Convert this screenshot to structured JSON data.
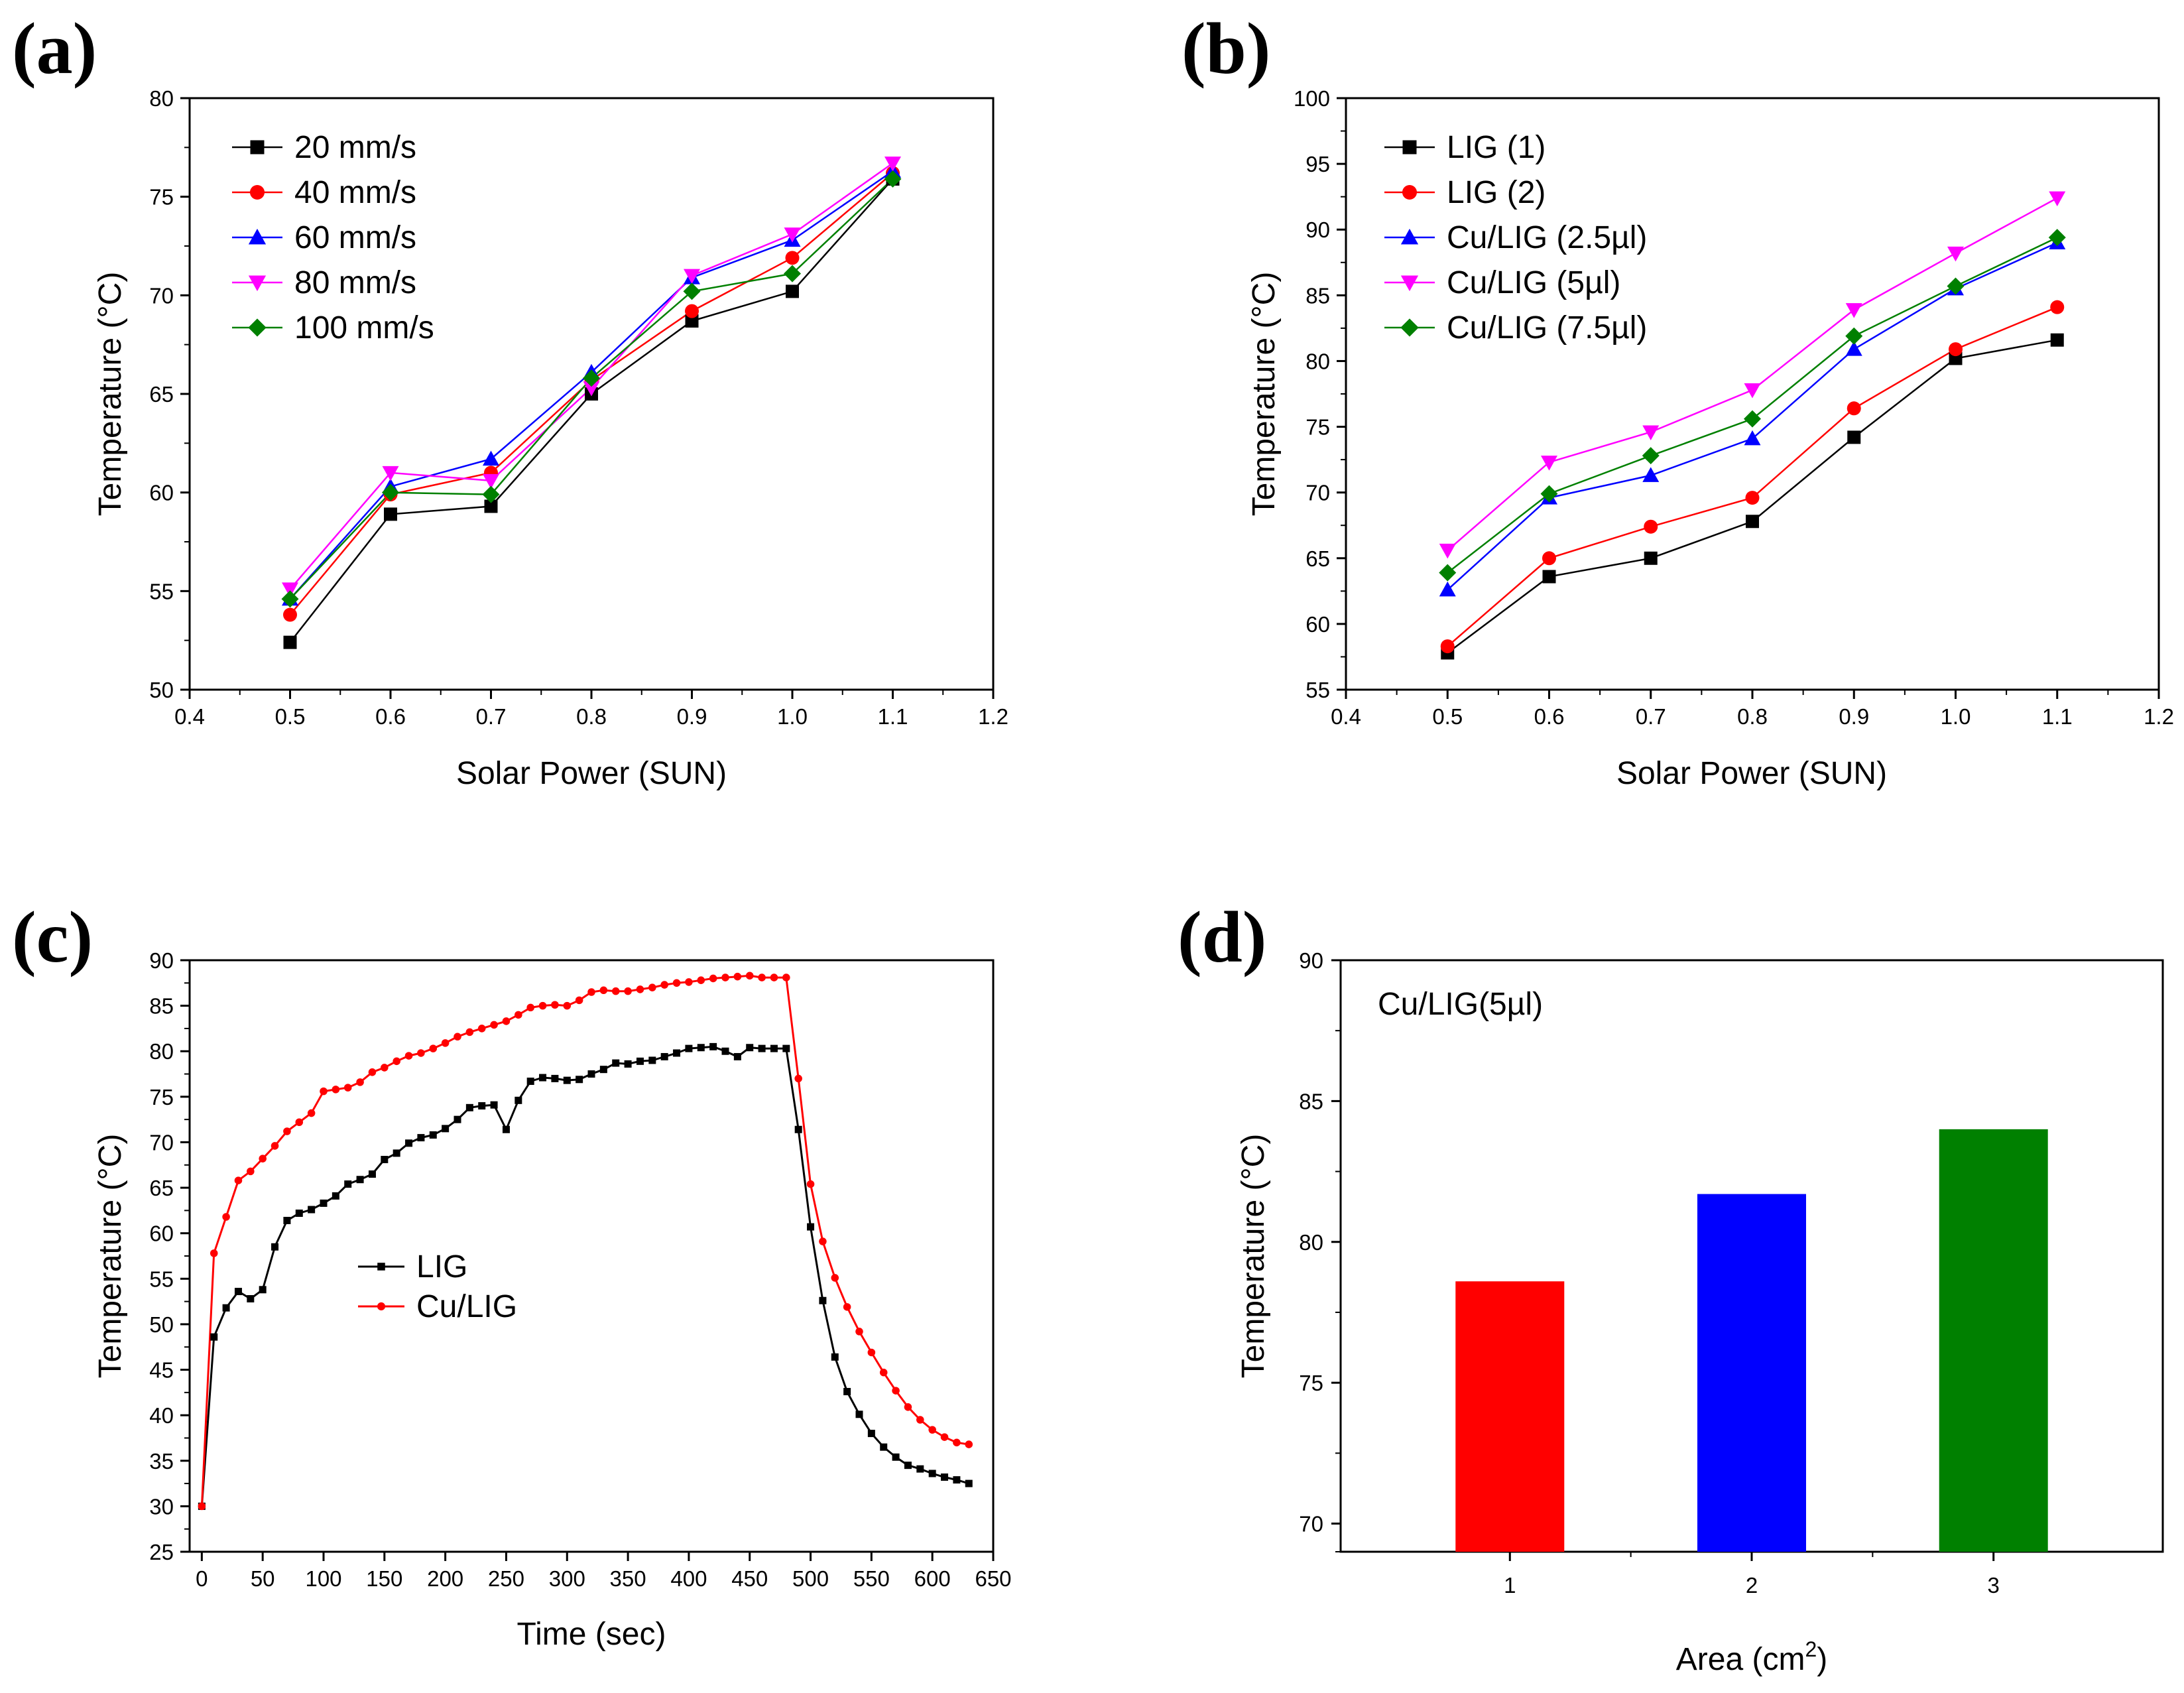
{
  "chart_data": [
    {
      "panel": "(a)",
      "type": "line",
      "xlabel": "Solar Power (SUN)",
      "ylabel": "Temperature (°C)",
      "xlim": [
        0.4,
        1.2
      ],
      "ylim": [
        50,
        80
      ],
      "xticks": [
        "0.4",
        "0.5",
        "0.6",
        "0.7",
        "0.8",
        "0.9",
        "1.0",
        "1.1",
        "1.2"
      ],
      "yticks": [
        "50",
        "55",
        "60",
        "65",
        "70",
        "75",
        "80"
      ],
      "legend_position": "top-left",
      "x": [
        0.5,
        0.6,
        0.7,
        0.8,
        0.9,
        1.0,
        1.1
      ],
      "series": [
        {
          "name": "20 mm/s",
          "color": "#000000",
          "marker": "square",
          "values": [
            52.4,
            58.9,
            59.3,
            65.0,
            68.7,
            70.2,
            75.9
          ]
        },
        {
          "name": "40 mm/s",
          "color": "#ff0000",
          "marker": "circle",
          "values": [
            53.8,
            59.9,
            61.0,
            65.7,
            69.2,
            71.9,
            76.2
          ]
        },
        {
          "name": "60 mm/s",
          "color": "#0000ff",
          "marker": "triangle-up",
          "values": [
            54.6,
            60.3,
            61.7,
            66.1,
            70.9,
            72.8,
            76.3
          ]
        },
        {
          "name": "80 mm/s",
          "color": "#ff00ff",
          "marker": "triangle-down",
          "values": [
            55.1,
            61.0,
            60.6,
            65.3,
            71.0,
            73.1,
            76.7
          ]
        },
        {
          "name": "100 mm/s",
          "color": "#008000",
          "marker": "diamond",
          "values": [
            54.6,
            60.0,
            59.9,
            65.8,
            70.2,
            71.1,
            75.9
          ]
        }
      ]
    },
    {
      "panel": "(b)",
      "type": "line",
      "xlabel": "Solar Power (SUN)",
      "ylabel": "Temperature (°C)",
      "xlim": [
        0.4,
        1.2
      ],
      "ylim": [
        55,
        100
      ],
      "xticks": [
        "0.4",
        "0.5",
        "0.6",
        "0.7",
        "0.8",
        "0.9",
        "1.0",
        "1.1",
        "1.2"
      ],
      "yticks": [
        "55",
        "60",
        "65",
        "70",
        "75",
        "80",
        "85",
        "90",
        "95",
        "100"
      ],
      "legend_position": "top-left",
      "x": [
        0.5,
        0.6,
        0.7,
        0.8,
        0.9,
        1.0,
        1.1
      ],
      "series": [
        {
          "name": "LIG (1)",
          "color": "#000000",
          "marker": "square",
          "values": [
            57.8,
            63.6,
            65.0,
            67.8,
            74.2,
            80.2,
            81.6
          ]
        },
        {
          "name": "LIG (2)",
          "color": "#ff0000",
          "marker": "circle",
          "values": [
            58.3,
            65.0,
            67.4,
            69.6,
            76.4,
            80.9,
            84.1
          ]
        },
        {
          "name": "Cu/LIG (2.5µl)",
          "color": "#0000ff",
          "marker": "triangle-up",
          "values": [
            62.6,
            69.6,
            71.3,
            74.1,
            80.9,
            85.5,
            89.0
          ]
        },
        {
          "name": "Cu/LIG (5µl)",
          "color": "#ff00ff",
          "marker": "triangle-down",
          "values": [
            65.6,
            72.3,
            74.6,
            77.8,
            83.9,
            88.2,
            92.4
          ]
        },
        {
          "name": "Cu/LIG (7.5µl)",
          "color": "#008000",
          "marker": "diamond",
          "values": [
            63.9,
            69.9,
            72.8,
            75.6,
            81.9,
            85.7,
            89.4
          ]
        }
      ]
    },
    {
      "panel": "(c)",
      "type": "line",
      "xlabel": "Time (sec)",
      "ylabel": "Temperature (°C)",
      "xlim": [
        -10,
        650
      ],
      "ylim": [
        25,
        90
      ],
      "xticks": [
        "0",
        "50",
        "100",
        "150",
        "200",
        "250",
        "300",
        "350",
        "400",
        "450",
        "500",
        "550",
        "600",
        "650"
      ],
      "yticks": [
        "25",
        "30",
        "35",
        "40",
        "45",
        "50",
        "55",
        "60",
        "65",
        "70",
        "75",
        "80",
        "85",
        "90"
      ],
      "legend_position": "center-left",
      "x": [
        0,
        10,
        20,
        30,
        40,
        50,
        60,
        70,
        80,
        90,
        100,
        110,
        120,
        130,
        140,
        150,
        160,
        170,
        180,
        190,
        200,
        210,
        220,
        230,
        240,
        250,
        260,
        270,
        280,
        290,
        300,
        310,
        320,
        330,
        340,
        350,
        360,
        370,
        380,
        390,
        400,
        410,
        420,
        430,
        440,
        450,
        460,
        470,
        480,
        490,
        500,
        510,
        520,
        530,
        540,
        550,
        560,
        570,
        580,
        590,
        600,
        610,
        620,
        630
      ],
      "series": [
        {
          "name": "LIG",
          "color": "#000000",
          "marker": "square",
          "values": [
            30.0,
            48.6,
            51.8,
            53.6,
            52.8,
            53.8,
            58.5,
            61.4,
            62.2,
            62.6,
            63.3,
            64.1,
            65.4,
            65.9,
            66.5,
            68.1,
            68.8,
            69.9,
            70.5,
            70.8,
            71.5,
            72.5,
            73.8,
            74.0,
            74.1,
            71.4,
            74.6,
            76.7,
            77.1,
            77.0,
            76.8,
            76.9,
            77.5,
            78.0,
            78.7,
            78.6,
            78.9,
            79.0,
            79.4,
            79.8,
            80.3,
            80.4,
            80.5,
            80.0,
            79.4,
            80.4,
            80.3,
            80.3,
            80.3,
            71.4,
            60.7,
            52.6,
            46.4,
            42.6,
            40.1,
            38.0,
            36.5,
            35.4,
            34.5,
            34.1,
            33.6,
            33.2,
            32.9,
            32.5
          ]
        },
        {
          "name": "Cu/LIG",
          "color": "#ff0000",
          "marker": "circle",
          "values": [
            30.0,
            57.8,
            61.8,
            65.8,
            66.8,
            68.2,
            69.6,
            71.2,
            72.2,
            73.2,
            75.6,
            75.8,
            76.0,
            76.6,
            77.7,
            78.2,
            78.9,
            79.5,
            79.8,
            80.3,
            80.9,
            81.6,
            82.1,
            82.5,
            82.9,
            83.3,
            84.0,
            84.8,
            85.0,
            85.1,
            85.0,
            85.6,
            86.5,
            86.7,
            86.6,
            86.6,
            86.8,
            87.0,
            87.3,
            87.5,
            87.6,
            87.8,
            88.0,
            88.1,
            88.2,
            88.3,
            88.1,
            88.1,
            88.1,
            77.0,
            65.4,
            59.1,
            55.1,
            51.9,
            49.2,
            46.9,
            44.7,
            42.7,
            40.9,
            39.5,
            38.4,
            37.6,
            37.0,
            36.8
          ]
        }
      ]
    },
    {
      "panel": "(d)",
      "type": "bar",
      "title": "Cu/LIG(5µl)",
      "xlabel": "Area (cm",
      "xlabel_sup": "2",
      "xlabel_suffix": ")",
      "ylabel": "Temperature (°C)",
      "ylim": [
        69,
        90
      ],
      "yticks": [
        "70",
        "75",
        "80",
        "85",
        "90"
      ],
      "categories": [
        "1",
        "2",
        "3"
      ],
      "values": [
        78.6,
        81.7,
        84.0
      ],
      "colors": [
        "#ff0000",
        "#0000ff",
        "#008000"
      ]
    }
  ]
}
